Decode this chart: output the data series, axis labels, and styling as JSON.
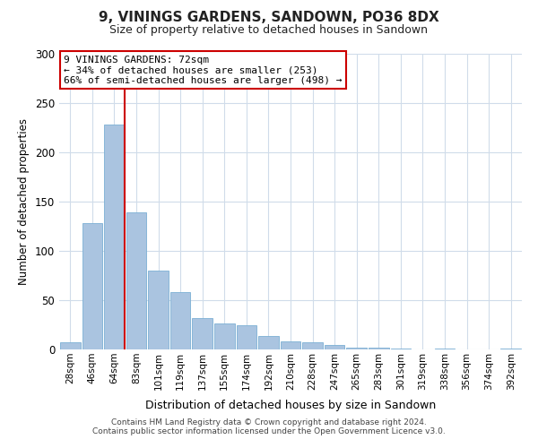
{
  "title": "9, VININGS GARDENS, SANDOWN, PO36 8DX",
  "subtitle": "Size of property relative to detached houses in Sandown",
  "xlabel": "Distribution of detached houses by size in Sandown",
  "ylabel": "Number of detached properties",
  "bar_labels": [
    "28sqm",
    "46sqm",
    "64sqm",
    "83sqm",
    "101sqm",
    "119sqm",
    "137sqm",
    "155sqm",
    "174sqm",
    "192sqm",
    "210sqm",
    "228sqm",
    "247sqm",
    "265sqm",
    "283sqm",
    "301sqm",
    "319sqm",
    "338sqm",
    "356sqm",
    "374sqm",
    "392sqm"
  ],
  "bar_values": [
    7,
    128,
    228,
    139,
    80,
    58,
    32,
    26,
    25,
    14,
    8,
    7,
    5,
    2,
    2,
    1,
    0,
    1,
    0,
    0,
    1
  ],
  "bar_color": "#aac4e0",
  "bar_edge_color": "#7bafd4",
  "ylim": [
    0,
    300
  ],
  "yticks": [
    0,
    50,
    100,
    150,
    200,
    250,
    300
  ],
  "property_label": "9 VININGS GARDENS: 72sqm",
  "annotation_line1": "← 34% of detached houses are smaller (253)",
  "annotation_line2": "66% of semi-detached houses are larger (498) →",
  "vline_color": "#cc0000",
  "annotation_box_color": "#cc0000",
  "footer1": "Contains HM Land Registry data © Crown copyright and database right 2024.",
  "footer2": "Contains public sector information licensed under the Open Government Licence v3.0.",
  "background_color": "#ffffff",
  "grid_color": "#d0dcea"
}
